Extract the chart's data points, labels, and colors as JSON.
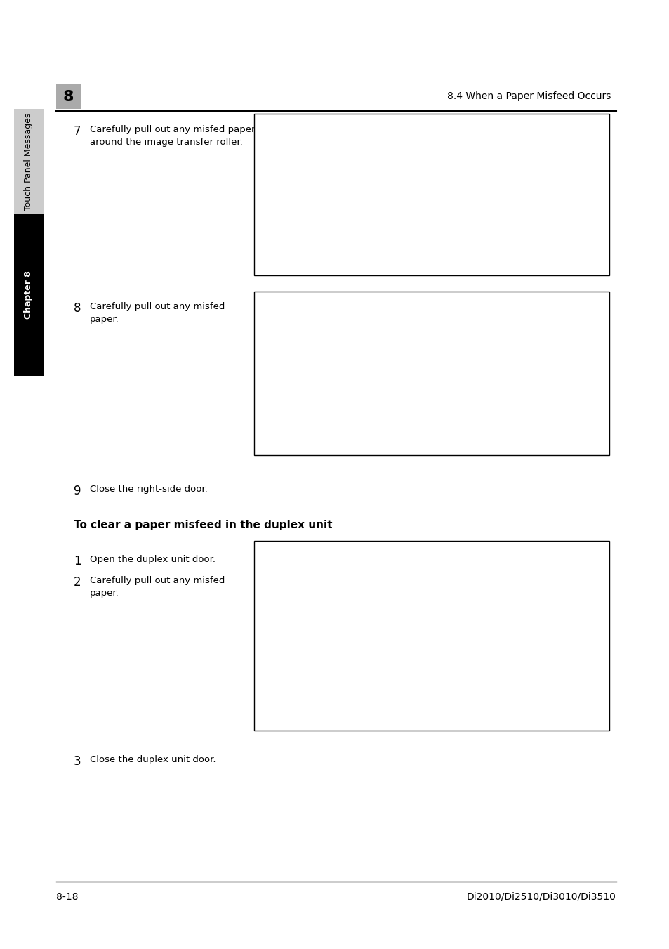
{
  "bg_color": "#ffffff",
  "header_number": "8",
  "header_title": "8.4 When a Paper Misfeed Occurs",
  "footer_left": "8-18",
  "footer_right": "Di2010/Di2510/Di3010/Di3510",
  "sidebar_text": "Touch Panel Messages",
  "sidebar_chapter": "Chapter 8",
  "step7_num": "7",
  "step7_text1": "Carefully pull out any misfed paper",
  "step7_text2": "around the image transfer roller.",
  "step8_num": "8",
  "step8_text1": "Carefully pull out any misfed",
  "step8_text2": "paper.",
  "step9_num": "9",
  "step9_text": "Close the right-side door.",
  "section_title": "To clear a paper misfeed in the duplex unit",
  "dup_step1_num": "1",
  "dup_step1_text": "Open the duplex unit door.",
  "dup_step2_num": "2",
  "dup_step2_text1": "Carefully pull out any misfed",
  "dup_step2_text2": "paper.",
  "dup_step3_num": "3",
  "dup_step3_text": "Close the duplex unit door.",
  "text_color": "#000000",
  "header_box_color": "#aaaaaa",
  "sidebar_black": "#000000",
  "sidebar_gray": "#cccccc"
}
